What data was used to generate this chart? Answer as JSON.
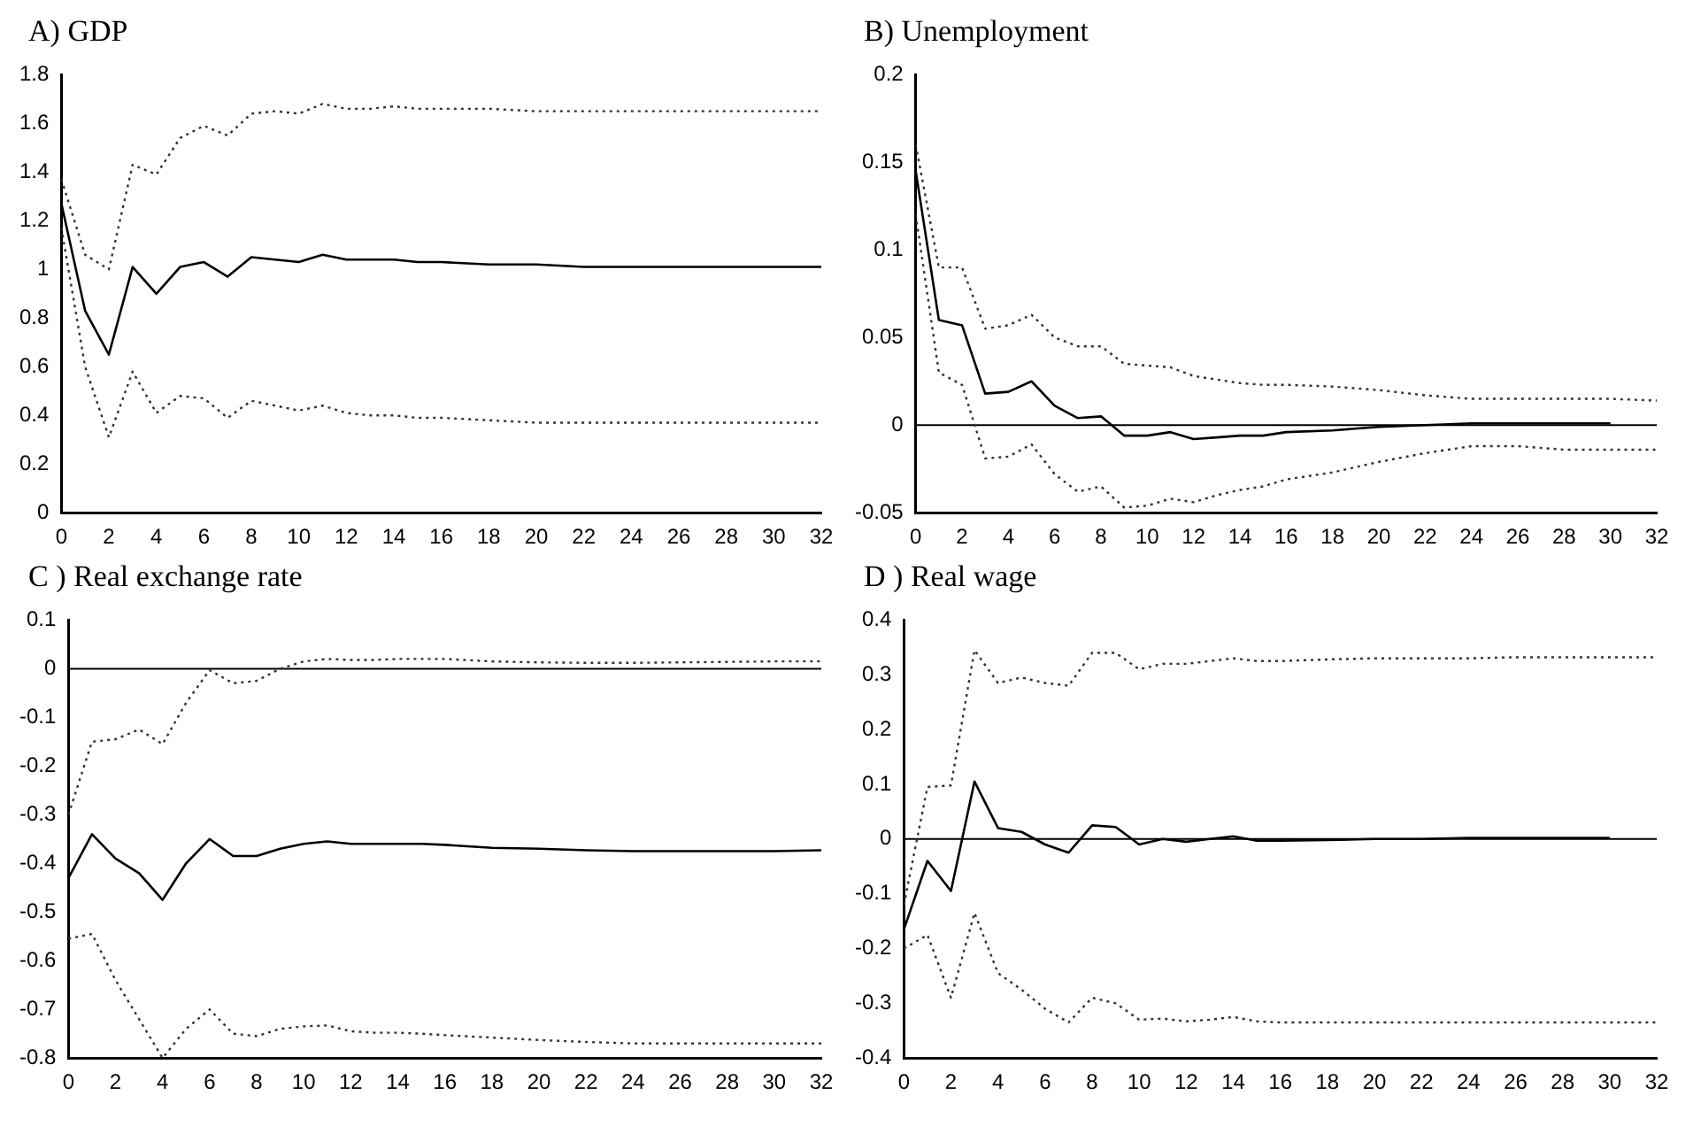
{
  "chart_data": [
    {
      "type": "line",
      "title": "A) GDP",
      "x": [
        0,
        1,
        2,
        3,
        4,
        5,
        6,
        7,
        8,
        9,
        10,
        11,
        12,
        13,
        14,
        15,
        16,
        18,
        20,
        22,
        24,
        26,
        28,
        30,
        32
      ],
      "xlim": [
        0,
        32
      ],
      "xticks": [
        0,
        2,
        4,
        6,
        8,
        10,
        12,
        14,
        16,
        18,
        20,
        22,
        24,
        26,
        28,
        30,
        32
      ],
      "ylim": [
        0,
        1.8
      ],
      "yticks": [
        0,
        0.2,
        0.4,
        0.6,
        0.8,
        1,
        1.2,
        1.4,
        1.6,
        1.8
      ],
      "grid": false,
      "legend": false,
      "marker": "none",
      "series": [
        {
          "color": "#000000",
          "line_style": "solid",
          "values": [
            1.27,
            0.83,
            0.65,
            1.01,
            0.9,
            1.01,
            1.03,
            0.97,
            1.05,
            1.04,
            1.03,
            1.06,
            1.04,
            1.04,
            1.04,
            1.03,
            1.03,
            1.02,
            1.02,
            1.01,
            1.01,
            1.01,
            1.01,
            1.01,
            1.01
          ]
        },
        {
          "color": "#333333",
          "line_style": "dotted",
          "values": [
            1.37,
            1.06,
            1.0,
            1.43,
            1.39,
            1.54,
            1.59,
            1.55,
            1.64,
            1.65,
            1.64,
            1.68,
            1.66,
            1.66,
            1.67,
            1.66,
            1.66,
            1.66,
            1.65,
            1.65,
            1.65,
            1.65,
            1.65,
            1.65,
            1.65
          ]
        },
        {
          "color": "#333333",
          "line_style": "dotted",
          "values": [
            1.17,
            0.6,
            0.31,
            0.58,
            0.41,
            0.48,
            0.47,
            0.39,
            0.46,
            0.44,
            0.42,
            0.44,
            0.41,
            0.4,
            0.4,
            0.39,
            0.39,
            0.38,
            0.37,
            0.37,
            0.37,
            0.37,
            0.37,
            0.37,
            0.37
          ]
        }
      ]
    },
    {
      "type": "line",
      "title": "B) Unemployment",
      "x": [
        0,
        1,
        2,
        3,
        4,
        5,
        6,
        7,
        8,
        9,
        10,
        11,
        12,
        13,
        14,
        15,
        16,
        18,
        20,
        22,
        24,
        26,
        28,
        30,
        32
      ],
      "xlim": [
        0,
        32
      ],
      "xticks": [
        0,
        2,
        4,
        6,
        8,
        10,
        12,
        14,
        16,
        18,
        20,
        22,
        24,
        26,
        28,
        30,
        32
      ],
      "ylim": [
        -0.05,
        0.2
      ],
      "yticks": [
        -0.05,
        0,
        0.05,
        0.1,
        0.15,
        0.2
      ],
      "grid": false,
      "legend": false,
      "marker": "none",
      "ref_lines": [
        {
          "axis": "y",
          "value": 0,
          "color": "#000000"
        }
      ],
      "series": [
        {
          "color": "#000000",
          "line_style": "solid",
          "x": [
            0,
            1,
            2,
            3,
            4,
            5,
            6,
            7,
            8,
            9,
            10,
            11,
            12,
            13,
            14,
            15,
            16,
            18,
            20,
            22,
            24,
            26,
            28,
            30
          ],
          "values": [
            0.145,
            0.06,
            0.057,
            0.018,
            0.019,
            0.025,
            0.011,
            0.004,
            0.005,
            -0.006,
            -0.006,
            -0.004,
            -0.008,
            -0.007,
            -0.006,
            -0.006,
            -0.004,
            -0.003,
            -0.001,
            0,
            0.001,
            0.001,
            0.001,
            0.001
          ]
        },
        {
          "color": "#333333",
          "line_style": "dotted",
          "values": [
            0.16,
            0.09,
            0.09,
            0.055,
            0.057,
            0.063,
            0.05,
            0.045,
            0.045,
            0.035,
            0.034,
            0.033,
            0.028,
            0.026,
            0.024,
            0.023,
            0.023,
            0.022,
            0.02,
            0.017,
            0.015,
            0.015,
            0.015,
            0.015,
            0.014
          ]
        },
        {
          "color": "#333333",
          "line_style": "dotted",
          "values": [
            0.12,
            0.03,
            0.023,
            -0.019,
            -0.018,
            -0.011,
            -0.028,
            -0.038,
            -0.035,
            -0.047,
            -0.046,
            -0.042,
            -0.044,
            -0.04,
            -0.037,
            -0.035,
            -0.031,
            -0.027,
            -0.021,
            -0.016,
            -0.012,
            -0.012,
            -0.014,
            -0.014,
            -0.014
          ]
        }
      ]
    },
    {
      "type": "line",
      "title": "C ) Real exchange rate",
      "x": [
        0,
        1,
        2,
        3,
        4,
        5,
        6,
        7,
        8,
        9,
        10,
        11,
        12,
        13,
        14,
        15,
        16,
        18,
        20,
        22,
        24,
        26,
        28,
        30,
        32
      ],
      "xlim": [
        0,
        32
      ],
      "xticks": [
        0,
        2,
        4,
        6,
        8,
        10,
        12,
        14,
        16,
        18,
        20,
        22,
        24,
        26,
        28,
        30,
        32
      ],
      "ylim": [
        -0.8,
        0.1
      ],
      "yticks": [
        -0.8,
        -0.7,
        -0.6,
        -0.5,
        -0.4,
        -0.3,
        -0.2,
        -0.1,
        0,
        0.1
      ],
      "grid": false,
      "legend": false,
      "marker": "none",
      "ref_lines": [
        {
          "axis": "y",
          "value": 0,
          "color": "#000000"
        }
      ],
      "series": [
        {
          "color": "#000000",
          "line_style": "solid",
          "values": [
            -0.43,
            -0.34,
            -0.39,
            -0.42,
            -0.475,
            -0.4,
            -0.35,
            -0.385,
            -0.385,
            -0.37,
            -0.36,
            -0.355,
            -0.36,
            -0.36,
            -0.36,
            -0.36,
            -0.362,
            -0.368,
            -0.37,
            -0.373,
            -0.375,
            -0.375,
            -0.375,
            -0.375,
            -0.373
          ]
        },
        {
          "color": "#333333",
          "line_style": "dotted",
          "values": [
            -0.3,
            -0.15,
            -0.145,
            -0.125,
            -0.155,
            -0.07,
            -0.003,
            -0.03,
            -0.025,
            0,
            0.015,
            0.02,
            0.018,
            0.018,
            0.02,
            0.02,
            0.02,
            0.015,
            0.013,
            0.012,
            0.012,
            0.013,
            0.014,
            0.015,
            0.015
          ]
        },
        {
          "color": "#333333",
          "line_style": "dotted",
          "values": [
            -0.555,
            -0.545,
            -0.64,
            -0.72,
            -0.8,
            -0.74,
            -0.7,
            -0.75,
            -0.755,
            -0.74,
            -0.735,
            -0.733,
            -0.745,
            -0.748,
            -0.748,
            -0.75,
            -0.753,
            -0.758,
            -0.763,
            -0.767,
            -0.77,
            -0.77,
            -0.77,
            -0.77,
            -0.77
          ]
        }
      ]
    },
    {
      "type": "line",
      "title": "D ) Real wage",
      "x": [
        0,
        1,
        2,
        3,
        4,
        5,
        6,
        7,
        8,
        9,
        10,
        11,
        12,
        13,
        14,
        15,
        16,
        18,
        20,
        22,
        24,
        26,
        28,
        30,
        32
      ],
      "xlim": [
        0,
        32
      ],
      "xticks": [
        0,
        2,
        4,
        6,
        8,
        10,
        12,
        14,
        16,
        18,
        20,
        22,
        24,
        26,
        28,
        30,
        32
      ],
      "ylim": [
        -0.4,
        0.4
      ],
      "yticks": [
        -0.4,
        -0.3,
        -0.2,
        -0.1,
        0,
        0.1,
        0.2,
        0.3,
        0.4
      ],
      "grid": false,
      "legend": false,
      "marker": "none",
      "ref_lines": [
        {
          "axis": "y",
          "value": 0,
          "color": "#000000"
        }
      ],
      "series": [
        {
          "color": "#000000",
          "line_style": "solid",
          "x": [
            0,
            1,
            2,
            3,
            4,
            5,
            6,
            7,
            8,
            9,
            10,
            11,
            12,
            13,
            14,
            15,
            16,
            18,
            20,
            22,
            24,
            26,
            28,
            30
          ],
          "values": [
            -0.165,
            -0.04,
            -0.095,
            0.105,
            0.02,
            0.013,
            -0.01,
            -0.025,
            0.025,
            0.022,
            -0.01,
            0,
            -0.005,
            0,
            0.005,
            -0.003,
            -0.003,
            -0.002,
            0,
            0,
            0.002,
            0.002,
            0.002,
            0.002
          ]
        },
        {
          "color": "#333333",
          "line_style": "dotted",
          "values": [
            -0.12,
            0.095,
            0.098,
            0.345,
            0.285,
            0.295,
            0.285,
            0.28,
            0.34,
            0.34,
            0.31,
            0.32,
            0.32,
            0.325,
            0.33,
            0.325,
            0.325,
            0.328,
            0.33,
            0.33,
            0.33,
            0.332,
            0.332,
            0.332,
            0.332
          ]
        },
        {
          "color": "#333333",
          "line_style": "dotted",
          "values": [
            -0.2,
            -0.175,
            -0.29,
            -0.135,
            -0.245,
            -0.275,
            -0.31,
            -0.335,
            -0.29,
            -0.3,
            -0.33,
            -0.328,
            -0.333,
            -0.33,
            -0.325,
            -0.333,
            -0.335,
            -0.335,
            -0.335,
            -0.335,
            -0.335,
            -0.335,
            -0.335,
            -0.335,
            -0.335
          ]
        }
      ]
    }
  ]
}
